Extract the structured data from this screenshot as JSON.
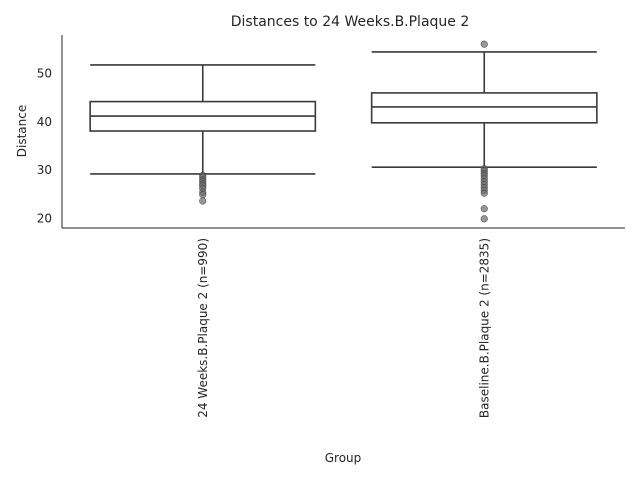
{
  "chart_data": {
    "type": "box",
    "title": "Distances to 24 Weeks.B.Plaque 2",
    "xlabel": "Group",
    "ylabel": "Distance",
    "ylim": [
      18,
      58
    ],
    "yticks": [
      20,
      30,
      40,
      50
    ],
    "grid": false,
    "categories": [
      "24 Weeks.B.Plaque 2 (n=990)",
      "Baseline.B.Plaque 2 (n=2835)"
    ],
    "boxes": [
      {
        "category": "24 Weeks.B.Plaque 2 (n=990)",
        "whisker_low": 29.2,
        "q1": 38.1,
        "median": 41.2,
        "q3": 44.2,
        "whisker_high": 51.8,
        "outliers": [
          28.9,
          28.5,
          28.0,
          27.6,
          27.1,
          26.7,
          26.2,
          25.4,
          24.9,
          23.6
        ]
      },
      {
        "category": "Baseline.B.Plaque 2 (n=2835)",
        "whisker_low": 30.6,
        "q1": 39.8,
        "median": 43.1,
        "q3": 46.0,
        "whisker_high": 54.5,
        "outliers": [
          56.1,
          30.3,
          29.8,
          29.3,
          28.8,
          28.2,
          27.6,
          27.0,
          26.4,
          25.8,
          25.2,
          22.0,
          19.9
        ]
      }
    ]
  }
}
